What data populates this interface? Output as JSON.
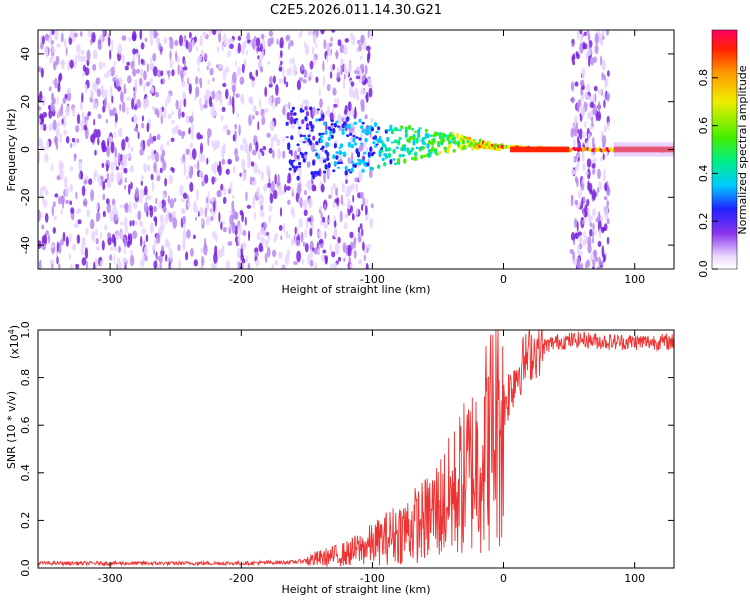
{
  "title": "C2E5.2026.011.14.30.G21",
  "colors": {
    "snr_line": "#ee3333",
    "spectrogram_purple": "#7722dd",
    "frame": "#000000"
  },
  "chart_data": [
    {
      "type": "heatmap",
      "xlabel": "Height of straight line (km)",
      "ylabel": "Frequency (Hz)",
      "xlim": [
        -355,
        130
      ],
      "ylim": [
        -50,
        50
      ],
      "xticks": [
        -300,
        -200,
        -100,
        0,
        100
      ],
      "xtick_labels": [
        "-300",
        "-200",
        "-100",
        "0",
        "100"
      ],
      "yticks": [
        -40,
        -20,
        0,
        20,
        40
      ],
      "ytick_labels": [
        "-40",
        "-20",
        "0",
        "20",
        "40"
      ],
      "colorbar": {
        "label": "Normalized spectral amplitude",
        "range": [
          0,
          1
        ],
        "ticks": [
          0.0,
          0.2,
          0.4,
          0.6,
          0.8
        ],
        "tick_labels": [
          "0.0",
          "0.2",
          "0.4",
          "0.6",
          "0.8"
        ],
        "colormap": "rainbow"
      },
      "features": {
        "noise_region_x": [
          -355,
          -120
        ],
        "tone_track": [
          {
            "x": -165,
            "y": 2,
            "amp": 0.2
          },
          {
            "x": -140,
            "y": 3,
            "amp": 0.25
          },
          {
            "x": -120,
            "y": 2,
            "amp": 0.3
          },
          {
            "x": -100,
            "y": 1,
            "amp": 0.3
          },
          {
            "x": -80,
            "y": 2,
            "amp": 0.45
          },
          {
            "x": -60,
            "y": 3,
            "amp": 0.5
          },
          {
            "x": -40,
            "y": 3,
            "amp": 0.55
          },
          {
            "x": -20,
            "y": 2,
            "amp": 0.8
          },
          {
            "x": 0,
            "y": 1,
            "amp": 0.85
          },
          {
            "x": 50,
            "y": 0,
            "amp": 0.95
          },
          {
            "x": 85,
            "y": 0,
            "amp": 0.95
          },
          {
            "x": 130,
            "y": 0,
            "amp": 0.95
          }
        ],
        "noise_band_x": [
          52,
          80
        ]
      }
    },
    {
      "type": "line",
      "xlabel": "Height of straight line (km)",
      "ylabel": "SNR (10 * v/v)",
      "scale_note": "(x10^4)",
      "xlim": [
        -355,
        130
      ],
      "ylim": [
        0,
        1.0
      ],
      "xticks": [
        -300,
        -200,
        -100,
        0,
        100
      ],
      "xtick_labels": [
        "-300",
        "-200",
        "-100",
        "0",
        "100"
      ],
      "yticks": [
        0.0,
        0.2,
        0.4,
        0.6,
        0.8,
        1.0
      ],
      "ytick_labels": [
        "0.0",
        "0.2",
        "0.4",
        "0.6",
        "0.8",
        "1.0"
      ],
      "series": [
        {
          "color": "#ee3333",
          "x": [
            -355,
            -300,
            -250,
            -200,
            -160,
            -140,
            -120,
            -100,
            -80,
            -60,
            -40,
            -20,
            -10,
            0,
            10,
            20,
            30,
            40,
            60,
            80,
            100,
            130
          ],
          "y": [
            0.02,
            0.02,
            0.02,
            0.02,
            0.025,
            0.04,
            0.06,
            0.1,
            0.15,
            0.2,
            0.3,
            0.45,
            0.55,
            0.68,
            0.82,
            0.9,
            0.93,
            0.95,
            0.96,
            0.95,
            0.95,
            0.95
          ]
        }
      ]
    }
  ]
}
